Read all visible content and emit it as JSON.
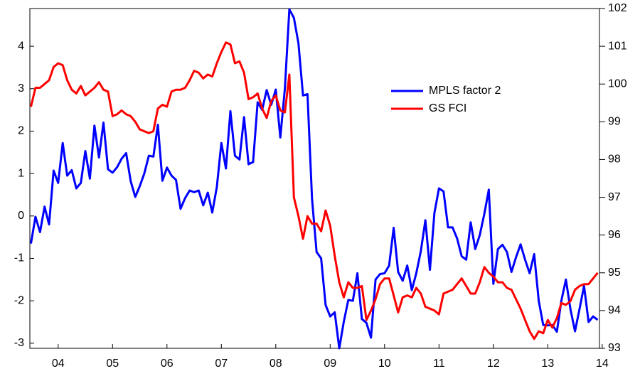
{
  "chart_data": {
    "type": "line",
    "x": [
      4,
      4.0833,
      4.1667,
      4.25,
      4.3333,
      4.4167,
      4.5,
      4.5833,
      4.6667,
      4.75,
      4.8333,
      4.9167,
      5,
      5.0833,
      5.1667,
      5.25,
      5.3333,
      5.4167,
      5.5,
      5.5833,
      5.6667,
      5.75,
      5.8333,
      5.9167,
      6,
      6.0833,
      6.1667,
      6.25,
      6.3333,
      6.4167,
      6.5,
      6.5833,
      6.6667,
      6.75,
      6.8333,
      6.9167,
      7,
      7.0833,
      7.1667,
      7.25,
      7.3333,
      7.4167,
      7.5,
      7.5833,
      7.6667,
      7.75,
      7.8333,
      7.9167,
      8,
      8.0833,
      8.1667,
      8.25,
      8.3333,
      8.4167,
      8.5,
      8.5833,
      8.6667,
      8.75,
      8.8333,
      8.9167,
      9,
      9.0833,
      9.1667,
      9.25,
      9.3333,
      9.4167,
      9.5,
      9.5833,
      9.6667,
      9.75,
      9.8333,
      9.9167,
      10,
      10.0833,
      10.1667,
      10.25,
      10.3333,
      10.4167,
      10.5,
      10.5833,
      10.6667,
      10.75,
      10.8333,
      10.9167,
      11,
      11.0833,
      11.1667,
      11.25,
      11.3333,
      11.4167,
      11.5,
      11.5833,
      11.6667,
      11.75,
      11.8333,
      11.9167,
      12,
      12.0833,
      12.1667,
      12.25,
      12.3333,
      12.4167,
      12.5,
      12.5833,
      12.6667,
      12.75,
      12.8333,
      12.9167,
      13,
      13.0833,
      13.1667,
      13.25,
      13.3333,
      13.4167,
      13.5,
      13.5833,
      13.6667,
      13.75,
      13.8333,
      13.9167,
      14,
      14.0833,
      14.1667,
      14.25,
      14.3333,
      14.4167
    ],
    "series": [
      {
        "name": "MPLS factor 2",
        "color": "#0000ff",
        "axis": "y",
        "values": [
          -0.65,
          -0.02,
          -0.38,
          0.22,
          -0.2,
          1.07,
          0.78,
          1.72,
          0.95,
          1.08,
          0.65,
          0.78,
          1.53,
          0.88,
          2.13,
          1.38,
          2.2,
          1.1,
          1.02,
          1.15,
          1.35,
          1.48,
          0.82,
          0.45,
          0.7,
          1.0,
          1.42,
          1.4,
          2.15,
          0.83,
          1.14,
          0.95,
          0.85,
          0.17,
          0.42,
          0.6,
          0.56,
          0.6,
          0.25,
          0.55,
          0.08,
          0.68,
          1.72,
          1.12,
          2.47,
          1.42,
          1.33,
          2.33,
          1.22,
          1.27,
          2.68,
          2.5,
          2.97,
          2.62,
          2.98,
          1.85,
          3.0,
          4.87,
          4.67,
          4.07,
          2.84,
          2.87,
          0.4,
          -0.85,
          -1.0,
          -2.1,
          -2.37,
          -2.27,
          -3.12,
          -2.5,
          -1.98,
          -2.0,
          -1.35,
          -2.43,
          -2.52,
          -2.87,
          -1.5,
          -1.37,
          -1.35,
          -1.17,
          -0.28,
          -1.32,
          -1.53,
          -1.17,
          -1.75,
          -1.35,
          -0.83,
          -0.1,
          -1.27,
          0.07,
          0.65,
          0.58,
          -0.27,
          -0.27,
          -0.53,
          -0.95,
          -1.03,
          -0.15,
          -0.78,
          -0.45,
          0.05,
          0.62,
          -1.6,
          -0.78,
          -0.68,
          -0.85,
          -1.32,
          -0.97,
          -0.67,
          -1.03,
          -1.35,
          -0.9,
          -2.0,
          -2.57,
          -2.58,
          -2.57,
          -2.73,
          -2.0,
          -1.5,
          -2.2,
          -2.72,
          -2.2,
          -1.65,
          -2.5,
          -2.37,
          -2.45
        ]
      },
      {
        "name": "GS FCI",
        "color": "#ff0000",
        "axis": "y2",
        "values": [
          99.4,
          99.9,
          99.9,
          100.0,
          100.1,
          100.45,
          100.55,
          100.5,
          100.1,
          99.85,
          99.75,
          99.95,
          99.7,
          99.8,
          99.9,
          100.05,
          99.85,
          99.8,
          99.15,
          99.2,
          99.3,
          99.2,
          99.15,
          99.0,
          98.8,
          98.75,
          98.7,
          98.75,
          99.35,
          99.45,
          99.4,
          99.8,
          99.85,
          99.85,
          99.9,
          100.1,
          100.35,
          100.3,
          100.15,
          100.25,
          100.2,
          100.55,
          100.85,
          101.1,
          101.05,
          100.55,
          100.6,
          100.3,
          99.6,
          99.65,
          99.75,
          99.35,
          99.1,
          99.55,
          99.7,
          99.3,
          99.25,
          100.25,
          97.0,
          96.5,
          95.9,
          96.5,
          96.3,
          96.3,
          96.1,
          96.65,
          96.25,
          95.45,
          94.75,
          94.35,
          94.75,
          94.6,
          94.6,
          94.65,
          93.75,
          94.0,
          94.3,
          94.7,
          94.85,
          94.85,
          94.4,
          93.95,
          94.35,
          94.4,
          94.35,
          94.6,
          94.45,
          94.1,
          94.05,
          94.0,
          93.9,
          94.45,
          94.5,
          94.55,
          94.7,
          94.85,
          94.65,
          94.45,
          94.45,
          94.75,
          95.15,
          95.0,
          94.9,
          94.75,
          94.75,
          94.6,
          94.55,
          94.3,
          94.05,
          93.75,
          93.45,
          93.25,
          93.45,
          93.4,
          93.75,
          93.55,
          93.8,
          94.2,
          94.15,
          94.25,
          94.55,
          94.65,
          94.7,
          94.7,
          94.85,
          95.0
        ]
      }
    ],
    "xlim": [
      3.98,
      14.45
    ],
    "xticks": [
      {
        "value": 4.5,
        "label": "04"
      },
      {
        "value": 5.5,
        "label": "05"
      },
      {
        "value": 6.5,
        "label": "06"
      },
      {
        "value": 7.5,
        "label": "07"
      },
      {
        "value": 8.5,
        "label": "08"
      },
      {
        "value": 9.5,
        "label": "09"
      },
      {
        "value": 10.5,
        "label": "10"
      },
      {
        "value": 11.5,
        "label": "11"
      },
      {
        "value": 12.5,
        "label": "12"
      },
      {
        "value": 13.5,
        "label": "13"
      },
      {
        "value": 14.5,
        "label": "14"
      }
    ],
    "ylim": [
      -3.12,
      4.89
    ],
    "yticks": [
      -3,
      -2,
      -1,
      0,
      1,
      2,
      3,
      4
    ],
    "y2lim": [
      93,
      102
    ],
    "y2ticks": [
      93,
      94,
      95,
      96,
      97,
      98,
      99,
      100,
      101,
      102
    ],
    "legend": "upper-right"
  }
}
